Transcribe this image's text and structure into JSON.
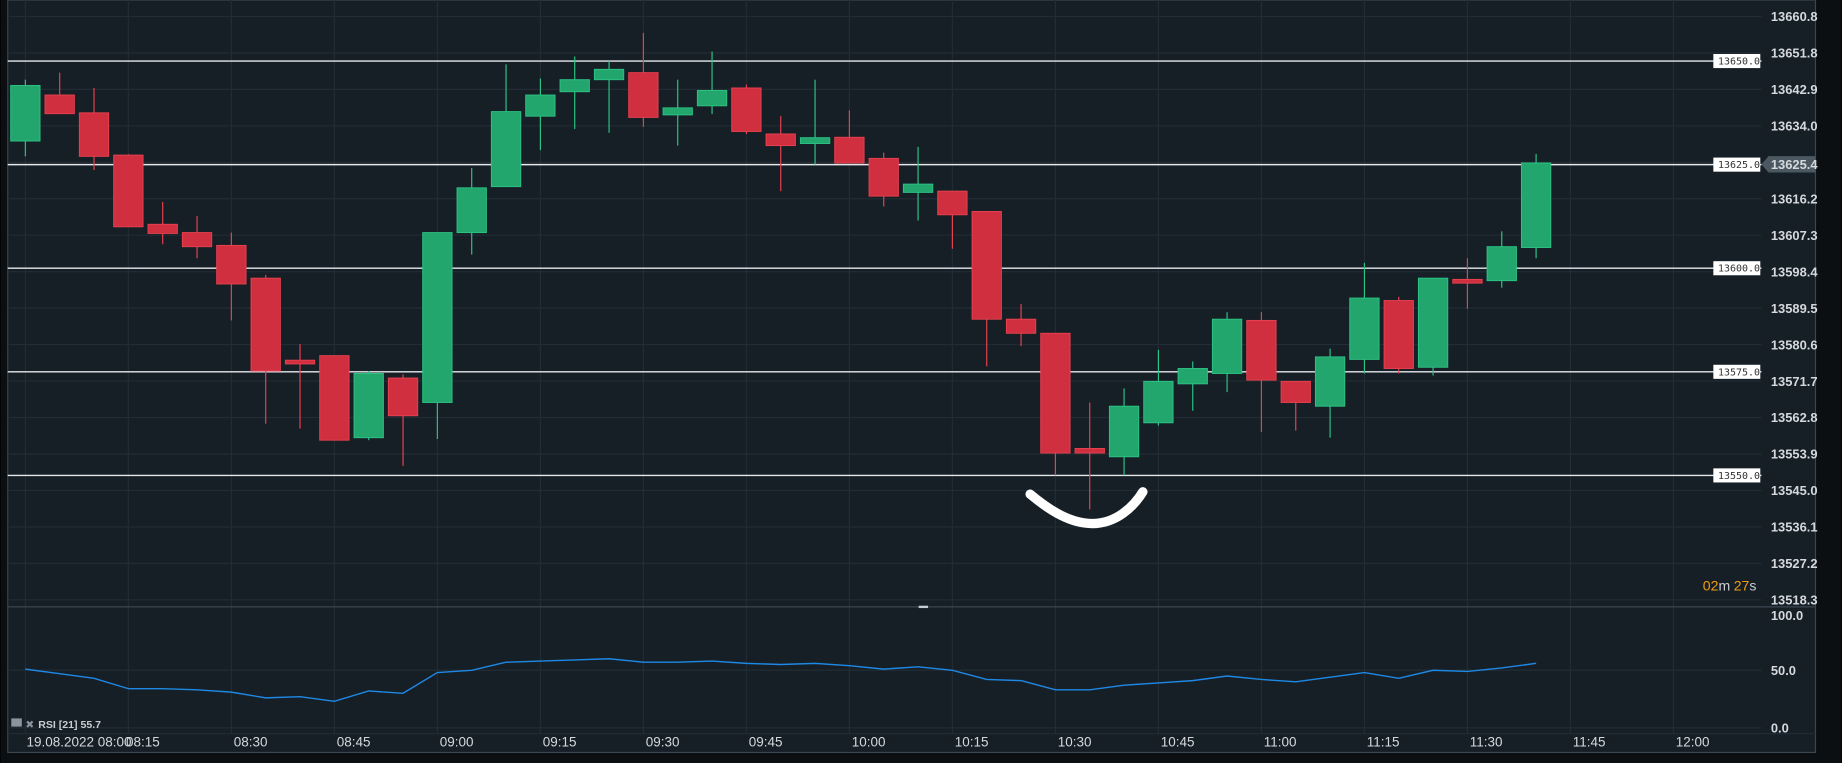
{
  "chart_data": {
    "type": "candlestick",
    "interval_minutes": 5,
    "date_label": "19.08.2022 08:00",
    "colors": {
      "up": "#23a56e",
      "up_border": "#2cc384",
      "down": "#cf2f3e",
      "down_border": "#e8414f",
      "background": "#161f26",
      "grid": "#222c34",
      "rsi": "#1e88e5",
      "countdown": "#f39c12"
    },
    "price_axis": {
      "ylim": [
        13518.3,
        13660.8
      ],
      "ticks": [
        "13660.8",
        "13651.8",
        "13642.9",
        "13634.0",
        "13625.4",
        "13616.2",
        "13607.3",
        "13598.4",
        "13589.5",
        "13580.6",
        "13571.7",
        "13562.8",
        "13553.9",
        "13545.0",
        "13536.1",
        "13527.2",
        "13518.3"
      ],
      "current_price": "13625.4"
    },
    "time_axis": {
      "ticks": [
        "08:15",
        "08:30",
        "08:45",
        "09:00",
        "09:15",
        "09:30",
        "09:45",
        "10:00",
        "10:15",
        "10:30",
        "10:45",
        "11:00",
        "11:15",
        "11:30",
        "11:45",
        "12:00"
      ]
    },
    "levels": [
      {
        "value": 13650.0,
        "label": "13650.0"
      },
      {
        "value": 13625.0,
        "label": "13625.0"
      },
      {
        "value": 13600.0,
        "label": "13600.0"
      },
      {
        "value": 13575.0,
        "label": "13575.0"
      },
      {
        "value": 13550.0,
        "label": "13550.0"
      }
    ],
    "candles": [
      [
        "08:00",
        13630.7,
        13645.5,
        13627.0,
        13644.1
      ],
      [
        "08:05",
        13641.8,
        13647.2,
        13637.3,
        13637.3
      ],
      [
        "08:10",
        13637.5,
        13643.5,
        13623.7,
        13627.0
      ],
      [
        "08:15",
        13627.3,
        13627.5,
        13610.0,
        13610.0
      ],
      [
        "08:20",
        13610.6,
        13616.0,
        13605.8,
        13608.4
      ],
      [
        "08:25",
        13608.6,
        13612.6,
        13602.4,
        13605.2
      ],
      [
        "08:30",
        13605.5,
        13608.6,
        13587.4,
        13596.2
      ],
      [
        "08:35",
        13597.6,
        13598.4,
        13562.5,
        13575.2
      ],
      [
        "08:40",
        13577.8,
        13581.7,
        13561.3,
        13576.9
      ],
      [
        "08:45",
        13578.9,
        13578.9,
        13558.5,
        13558.5
      ],
      [
        "08:50",
        13559.1,
        13575.2,
        13558.5,
        13574.6
      ],
      [
        "08:55",
        13573.5,
        13574.4,
        13552.3,
        13564.4
      ],
      [
        "09:00",
        13567.6,
        13608.6,
        13558.8,
        13608.6
      ],
      [
        "09:05",
        13608.6,
        13624.2,
        13603.3,
        13619.4
      ],
      [
        "09:10",
        13619.7,
        13649.2,
        13619.7,
        13637.8
      ],
      [
        "09:15",
        13636.7,
        13645.8,
        13628.5,
        13641.8
      ],
      [
        "09:20",
        13642.6,
        13651.1,
        13633.6,
        13645.5
      ],
      [
        "09:25",
        13645.5,
        13650.0,
        13632.7,
        13648.0
      ],
      [
        "09:30",
        13647.2,
        13656.8,
        13634.1,
        13636.4
      ],
      [
        "09:35",
        13637.0,
        13645.5,
        13629.6,
        13638.7
      ],
      [
        "09:40",
        13639.2,
        13652.3,
        13637.2,
        13642.9
      ],
      [
        "09:45",
        13643.5,
        13644.3,
        13632.4,
        13633.0
      ],
      [
        "09:50",
        13632.4,
        13636.7,
        13618.6,
        13629.6
      ],
      [
        "09:55",
        13630.1,
        13645.5,
        13625.0,
        13631.5
      ],
      [
        "10:00",
        13631.6,
        13638.1,
        13625.4,
        13625.4
      ],
      [
        "10:05",
        13626.5,
        13627.9,
        13614.9,
        13617.4
      ],
      [
        "10:10",
        13618.3,
        13629.3,
        13611.5,
        13620.3
      ],
      [
        "10:15",
        13618.6,
        13618.6,
        13604.7,
        13612.9
      ],
      [
        "10:20",
        13613.7,
        13613.7,
        13576.3,
        13587.7
      ],
      [
        "10:25",
        13587.7,
        13591.4,
        13581.2,
        13584.3
      ],
      [
        "10:30",
        13584.3,
        13584.3,
        13550.0,
        13555.4
      ],
      [
        "10:35",
        13556.5,
        13567.6,
        13541.8,
        13555.4
      ],
      [
        "10:40",
        13554.5,
        13571.0,
        13550.0,
        13566.7
      ],
      [
        "10:45",
        13562.7,
        13580.3,
        13562.0,
        13572.7
      ],
      [
        "10:50",
        13572.1,
        13577.5,
        13565.6,
        13575.8
      ],
      [
        "10:55",
        13574.6,
        13589.4,
        13570.1,
        13587.7
      ],
      [
        "11:00",
        13587.4,
        13589.4,
        13560.5,
        13573.0
      ],
      [
        "11:05",
        13572.7,
        13572.7,
        13560.8,
        13567.6
      ],
      [
        "11:10",
        13566.7,
        13580.6,
        13559.1,
        13578.6
      ],
      [
        "11:15",
        13578.0,
        13601.3,
        13574.6,
        13592.8
      ],
      [
        "11:20",
        13592.2,
        13593.1,
        13574.6,
        13575.8
      ],
      [
        "11:25",
        13576.1,
        13597.6,
        13574.1,
        13597.6
      ],
      [
        "11:30",
        13597.3,
        13602.4,
        13590.2,
        13596.4
      ],
      [
        "11:35",
        13597.0,
        13608.9,
        13595.3,
        13605.2
      ],
      [
        "11:40",
        13605.0,
        13627.6,
        13602.4,
        13625.4
      ]
    ],
    "rsi": {
      "label": "RSI [21] 55.7",
      "ylim": [
        0,
        100
      ],
      "ticks": [
        "100.0",
        "50.0",
        "0.0"
      ],
      "values": [
        51,
        47,
        43,
        34,
        34,
        33,
        31,
        26,
        27,
        23,
        32,
        30,
        48,
        50,
        57,
        58,
        59,
        60,
        57,
        57,
        58,
        56,
        55,
        56,
        54,
        51,
        53,
        50,
        42,
        41,
        33,
        33,
        37,
        39,
        41,
        45,
        42,
        40,
        44,
        48,
        43,
        50,
        49,
        52,
        56
      ]
    },
    "countdown": {
      "minutes": "02",
      "m": "m",
      "seconds": "27",
      "s": "s"
    }
  }
}
